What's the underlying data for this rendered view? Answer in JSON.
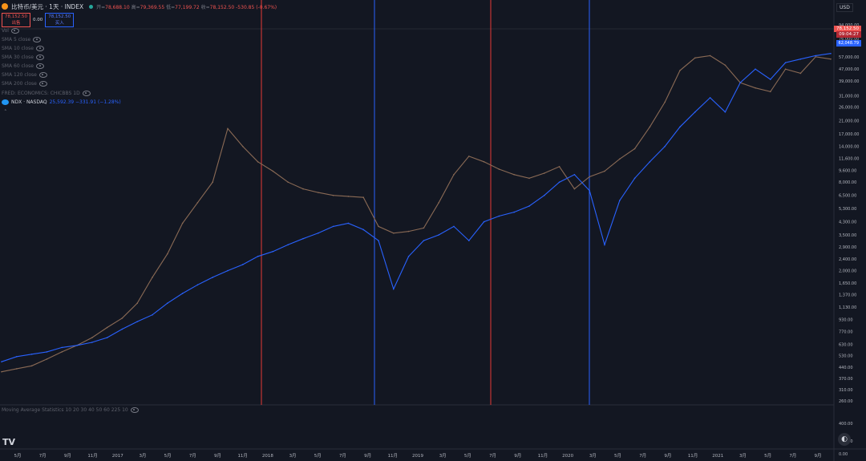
{
  "header": {
    "title": "比特币/美元 · 1天 · INDEX",
    "ohlc_labels": [
      "开",
      "高",
      "低",
      "收"
    ],
    "ohlc_values": [
      "78,688.10",
      "79,369.55",
      "77,199.72",
      "78,152.50",
      "-530.85 (-0.67%)"
    ]
  },
  "quote": {
    "sell_price": "78,152.50",
    "sell_label": "出售",
    "spread": "0.00",
    "buy_price": "78,152.50",
    "buy_label": "买入"
  },
  "indicators": [
    {
      "label": "Vol"
    },
    {
      "label": "SMA 5 close"
    },
    {
      "label": "SMA 10 close"
    },
    {
      "label": "SMA 30 close"
    },
    {
      "label": "SMA 60 close"
    },
    {
      "label": "SMA 120 close"
    },
    {
      "label": "SMA 200 close"
    },
    {
      "label": "FRED: ECONOMICS: CHICBBS 1D"
    }
  ],
  "compare": {
    "icon_label": "NDX",
    "symbol": "NDX · NASDAQ",
    "value": "25,592.39 −331.91 (−1.28%)"
  },
  "bottom_pane": {
    "label": "Moving Average Statistics 10 20 30 40 50 60 225 10"
  },
  "currency": "USD",
  "price_tags": {
    "last": "78,152.50",
    "countdown": "09:04:27",
    "ndx": "62,048.79"
  },
  "chart_data": {
    "type": "line",
    "y_scale": "log",
    "y_axis_ticks": [
      "94,000.00",
      "76,000.00",
      "57,000.00",
      "47,000.00",
      "39,000.00",
      "31,000.00",
      "26,000.00",
      "21,000.00",
      "17,000.00",
      "14,000.00",
      "11,600.00",
      "9,600.00",
      "8,000.00",
      "6,500.00",
      "5,300.00",
      "4,300.00",
      "3,500.00",
      "2,900.00",
      "2,400.00",
      "2,000.00",
      "1,650.00",
      "1,370.00",
      "1,130.00",
      "930.00",
      "770.00",
      "630.00",
      "530.00",
      "440.00",
      "370.00",
      "310.00",
      "260.00"
    ],
    "y_axis_extra": [
      "400.00",
      "140.00",
      "0.00"
    ],
    "x_axis_ticks": [
      "5月",
      "7月",
      "9月",
      "11月",
      "2017",
      "3月",
      "5月",
      "7月",
      "9月",
      "11月",
      "2018",
      "3月",
      "5月",
      "7月",
      "9月",
      "11月",
      "2019",
      "3月",
      "5月",
      "7月",
      "9月",
      "11月",
      "2020",
      "3月",
      "5月",
      "7月",
      "9月",
      "11月",
      "2021",
      "3月",
      "5月",
      "7月",
      "9月"
    ],
    "series": [
      {
        "name": "",
        "color": "#8a6a55",
        "values": [
          410,
          430,
          450,
          500,
          560,
          620,
          700,
          820,
          950,
          1200,
          1800,
          2600,
          4200,
          5800,
          8000,
          18500,
          14000,
          11000,
          9500,
          8000,
          7200,
          6800,
          6500,
          6400,
          6300,
          4000,
          3600,
          3700,
          3900,
          5800,
          9000,
          12000,
          11000,
          9800,
          9000,
          8500,
          9200,
          10200,
          7200,
          8700,
          9500,
          11500,
          13500,
          19000,
          28000,
          46000,
          56000,
          58000,
          50000,
          38000,
          35000,
          33000,
          47000,
          44000,
          57000,
          55000
        ]
      },
      {
        "name": "",
        "color": "#2962ff",
        "values": [
          480,
          520,
          540,
          560,
          600,
          620,
          650,
          700,
          800,
          900,
          1000,
          1200,
          1400,
          1600,
          1800,
          2000,
          2200,
          2500,
          2700,
          3000,
          3300,
          3600,
          4000,
          4200,
          3800,
          3200,
          1500,
          2500,
          3200,
          3500,
          4000,
          3200,
          4300,
          4700,
          5000,
          5500,
          6500,
          8000,
          9000,
          7000,
          3000,
          6000,
          8500,
          11000,
          14000,
          19000,
          24000,
          30000,
          24000,
          38000,
          47000,
          40000,
          52000,
          55000,
          58000,
          60000
        ]
      }
    ],
    "vertical_markers": [
      {
        "color": "#e53935"
      },
      {
        "color": "#2962ff"
      },
      {
        "color": "#e53935"
      },
      {
        "color": "#2962ff"
      }
    ]
  }
}
